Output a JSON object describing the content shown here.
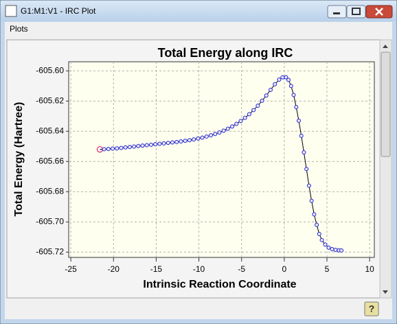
{
  "window": {
    "title": "G1:M1:V1 - IRC Plot",
    "menu": [
      "Plots"
    ]
  },
  "chart_data": {
    "type": "line",
    "title": "Total Energy along IRC",
    "x_label": "Intrinsic Reaction Coordinate",
    "y_label": "Total Energy (Hartree)",
    "x": [
      -21.6,
      -21.1,
      -20.6,
      -20.1,
      -19.6,
      -19.1,
      -18.6,
      -18.1,
      -17.6,
      -17.1,
      -16.6,
      -16.1,
      -15.6,
      -15.1,
      -14.6,
      -14.1,
      -13.6,
      -13.1,
      -12.6,
      -12.1,
      -11.6,
      -11.1,
      -10.6,
      -10.1,
      -9.6,
      -9.1,
      -8.6,
      -8.1,
      -7.6,
      -7.1,
      -6.6,
      -6.1,
      -5.6,
      -5.1,
      -4.6,
      -4.1,
      -3.6,
      -3.1,
      -2.6,
      -2.1,
      -1.6,
      -1.1,
      -0.6,
      -0.2,
      0.2,
      0.5,
      0.8,
      1.1,
      1.4,
      1.7,
      2.0,
      2.3,
      2.6,
      2.9,
      3.2,
      3.5,
      3.8,
      4.1,
      4.4,
      4.8,
      5.2,
      5.6,
      6.0,
      6.4,
      6.7
    ],
    "values": [
      -605.652,
      -605.6519,
      -605.6517,
      -605.6515,
      -605.6513,
      -605.651,
      -605.6507,
      -605.6504,
      -605.6501,
      -605.6498,
      -605.6495,
      -605.6492,
      -605.6489,
      -605.6486,
      -605.6483,
      -605.648,
      -605.6477,
      -605.6474,
      -605.6471,
      -605.6467,
      -605.6463,
      -605.6459,
      -605.6454,
      -605.6448,
      -605.6442,
      -605.6435,
      -605.6427,
      -605.6418,
      -605.6408,
      -605.6396,
      -605.6383,
      -605.6368,
      -605.6351,
      -605.6332,
      -605.6311,
      -605.6287,
      -605.626,
      -605.6231,
      -605.6198,
      -605.6163,
      -605.6126,
      -605.6089,
      -605.6058,
      -605.6043,
      -605.6042,
      -605.606,
      -605.61,
      -605.616,
      -605.624,
      -605.633,
      -605.643,
      -605.654,
      -605.665,
      -605.676,
      -605.686,
      -605.695,
      -605.702,
      -605.708,
      -605.712,
      -605.715,
      -605.717,
      -605.718,
      -605.7185,
      -605.7188,
      -605.7189
    ],
    "color": "#2222cc",
    "line_color": "#000000",
    "highlight": 0,
    "highlight_color": "#cc0066",
    "xlim": [
      -25.25,
      10.55
    ],
    "ylim": [
      -605.7235,
      -605.594
    ],
    "xticks": [
      -25,
      -20,
      -15,
      -10,
      -5,
      0,
      5,
      10
    ],
    "yticks": [
      {
        "value": -605.6,
        "label": "-605.60"
      },
      {
        "value": -605.62,
        "label": "-605.62"
      },
      {
        "value": -605.64,
        "label": "-605.64"
      },
      {
        "value": -605.66,
        "label": "-605.66"
      },
      {
        "value": -605.68,
        "label": "-605.68"
      },
      {
        "value": -605.7,
        "label": "-605.70"
      },
      {
        "value": -605.72,
        "label": "-605.72"
      }
    ],
    "grid": true
  }
}
